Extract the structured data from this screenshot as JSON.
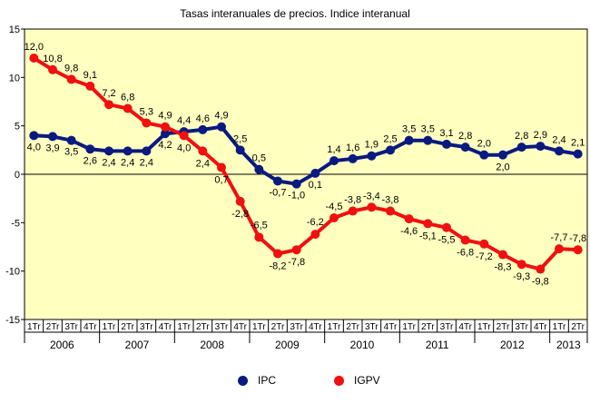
{
  "chart_data": {
    "type": "line",
    "title": "Tasas interanuales de precios.  Indice interanual",
    "ylim": [
      -15,
      15
    ],
    "yticks": [
      "15",
      "10",
      "5",
      "0",
      "-5",
      "-10",
      "-15"
    ],
    "grid": false,
    "background": "#FFFFC0",
    "quarters": [
      "1Tr",
      "2Tr",
      "3Tr",
      "4Tr",
      "1Tr",
      "2Tr",
      "3Tr",
      "4Tr",
      "1Tr",
      "2Tr",
      "3Tr",
      "4Tr",
      "1Tr",
      "2Tr",
      "3Tr",
      "4Tr",
      "1Tr",
      "2Tr",
      "3Tr",
      "4Tr",
      "1Tr",
      "2Tr",
      "3Tr",
      "4Tr",
      "1Tr",
      "2Tr",
      "3Tr",
      "4Tr",
      "1Tr",
      "2Tr"
    ],
    "years": [
      "2006",
      "2007",
      "2008",
      "2009",
      "2010",
      "2011",
      "2012",
      "2013"
    ],
    "series": [
      {
        "name": "IPC",
        "color": "#0A1A80",
        "values": [
          4.0,
          3.9,
          3.5,
          2.6,
          2.4,
          2.4,
          2.4,
          4.2,
          4.4,
          4.6,
          4.9,
          2.5,
          0.5,
          -0.7,
          -1.0,
          0.1,
          1.4,
          1.6,
          1.9,
          2.5,
          3.5,
          3.5,
          3.1,
          2.8,
          2.0,
          2.0,
          2.8,
          2.9,
          2.4,
          2.1
        ],
        "labels": [
          "4,0",
          "3,9",
          "3,5",
          "2,6",
          "2,4",
          "2,4",
          "2,4",
          "4,2",
          "4,4",
          "4,6",
          "4,9",
          "2,5",
          "0,5",
          "-0,7",
          "-1,0",
          "0,1",
          "1,4",
          "1,6",
          "1,9",
          "2,5",
          "3,5",
          "3,5",
          "3,1",
          "2,8",
          "2,0",
          "2,0",
          "2,8",
          "2,9",
          "2,4",
          "2,1"
        ]
      },
      {
        "name": "IGPV",
        "color": "#F01010",
        "values": [
          12.0,
          10.8,
          9.8,
          9.1,
          7.2,
          6.8,
          5.3,
          4.9,
          4.0,
          2.4,
          0.7,
          -2.8,
          -6.5,
          -8.2,
          -7.8,
          -6.2,
          -4.5,
          -3.8,
          -3.4,
          -3.8,
          -4.6,
          -5.1,
          -5.5,
          -6.8,
          -7.2,
          -8.3,
          -9.3,
          -9.8,
          -7.7,
          -7.8
        ],
        "labels": [
          "12,0",
          "10,8",
          "9,8",
          "9,1",
          "7,2",
          "6,8",
          "5,3",
          "4,9",
          "4,0",
          "2,4",
          "0,7",
          "-2,8",
          "-6,5",
          "-8,2",
          "-7,8",
          "-6,2",
          "-4,5",
          "-3,8",
          "-3,4",
          "-3,8",
          "-4,6",
          "-5,1",
          "-5,5",
          "-6,8",
          "-7,2",
          "-8,3",
          "-9,3",
          "-9,8",
          "-7,7",
          "-7,8"
        ]
      }
    ],
    "legend": {
      "position": "bottom"
    }
  }
}
